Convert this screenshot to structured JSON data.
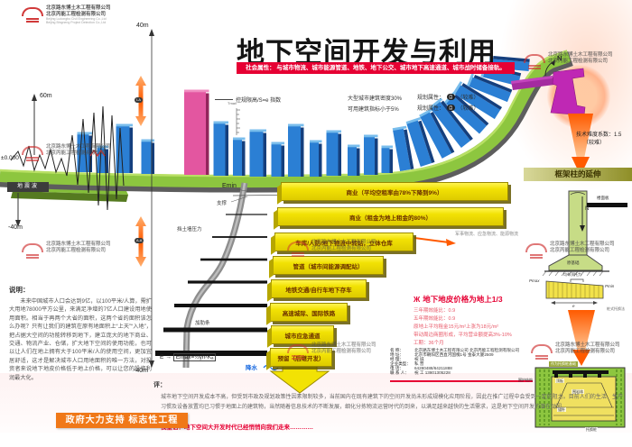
{
  "watermark": {
    "cn1": "北京路东博土木工程有限公司",
    "cn2": "北京丙能工程检测有限公司",
    "en1": "Beijing Ludongbo Civil Engineering Co.,Ltd",
    "en2": "Beijing Bingneng Project Detection Co.,Ltd"
  },
  "header": {
    "title": "地下空间开发与利用",
    "banner": "社会属性： 与城市物流、城市能源管道、地铁、地下公交、城市地下高速通道、城市战时储备接轨。"
  },
  "legend": {
    "limit_line": "控规限高/S=e 指数",
    "density": "大型城市建筑密度30%",
    "indicator": "可用建筑指标小于5%",
    "plan_label": "规划属性：",
    "plan_badge": "自",
    "plan_value": "（较难）"
  },
  "axis": {
    "left_top": "60m",
    "zero": "±0.000",
    "seismic": "地震波",
    "left_bottom": "-40m",
    "center_top": "40m",
    "center_bottom": "-40m",
    "badge_a": "I-A",
    "badge_b": "A-A",
    "tmax": "Tmax"
  },
  "excavation": {
    "emin": "Emin",
    "support": "支撑",
    "pressure": "挡土墙压力",
    "rib": "加肋条",
    "e": "E",
    "formula": "Emax=½γh²Kₐ",
    "dewater": "降水"
  },
  "bars": {
    "b1": "商业（平均空租率由78%下降到9%）",
    "b2": "商业（租金为地上租金的80%）",
    "b3": "车库/人防/地下物流中转站，立体仓库",
    "b4": "管道（城市间能源调配站）",
    "b5": "地铁交通/自行车地下存车",
    "b6": "高速城际、国际铁路",
    "b7": "城市应急通道",
    "b8": "预留（后继开发）",
    "note": "军事物流、应急物流、能源物流"
  },
  "market": {
    "icon": "Ж",
    "title": "地下地皮价格为地上1/3",
    "l1": "三年期效能比：0.9",
    "l2": "五年期效能比：0.9",
    "l3": "原地上平均租金15元/m²上涨为18元/m²",
    "l4": "带动周边商圈形成，平均营业额提高3%-10%",
    "l5": "工期：36个月"
  },
  "company": {
    "k1": "名  称：",
    "v1": "北京路东博土木工程有限公司 北京丙能工程检测有限公司",
    "k2": "地  址：",
    "v2": "北京市朝阳区西直河国槐1号 金泰大厦2509",
    "k3": "经  理：",
    "v3": "祝 诚",
    "k4": "企业类型：",
    "v4": "私 营",
    "k5": "电  话：",
    "v5": "64280488/64211888",
    "k6": "联 系 人：",
    "v6": "祝 工 13801305228"
  },
  "right": {
    "difficulty": "技术难度系数：1.5",
    "difficulty_level": "（较难）",
    "compass": "N",
    "header": "框架柱的延伸",
    "slab": "楼面板",
    "n": "N",
    "footing": "原基础",
    "pmax": "Pmax",
    "pmin": "Pmin",
    "bracket": "均布顶托力",
    "e_dim": "e",
    "method": "桩式托换法",
    "plan_top": "作为托换桩基础",
    "plan_left": "围护结构",
    "plan_roof": "顶板",
    "plan_rock": "围岩体",
    "plan_anchor": "锚杆",
    "plan_pile": "托换桩"
  },
  "explain": {
    "title": "说明：",
    "body": "未来中国城市人口会达到9亿，以100平米/人算，需扩大用地78000平方公里，来满足净增的7亿人口建设用地使用面积。相当于再两个大省的面积，这两个省的面积该怎么办呢？只有让我们的建筑在原有地面积上“上天”“入地”，把占据大空间的功能转移到地下，建立庞大的地下商业、交通、物流产业、仓储，扩大地下空间的使用功能，也可以让人们在地上拥有大于100平米/人的使用空间，更加宜居舒适，这才是解决城市人口用地面积的唯一方法，对投资者来说地下地皮价格低于地上价格，可以让您的投资利润最大化。"
  },
  "comment": {
    "title": "评：",
    "body": "城市地下空间开发成本不高，但受到市政及规划政策性因素限制较多，当前国内在既有建筑下的空间开发尚未形成规模化应用阶段，因此在推广过程中会受到一定的阻力。目前人们的生活、生产习惯及设备放置均已习惯于地面上的建筑物，当然随着信息技术的不断发展，细化分拣物流运营时代的到来，以满足越来越快的生活需求，这是地下空间开发的潜在动因。",
    "slogan": "我坚信：地下空间大开发时代已经悄悄向我们走来…………"
  },
  "footer": {
    "banner": "政府大力支持 标志性工程"
  }
}
